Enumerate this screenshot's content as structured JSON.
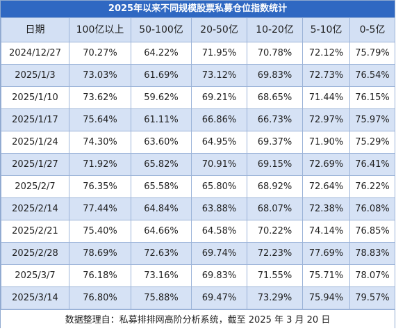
{
  "title": "2025年以来不同规模股票私募仓位指数统计",
  "headers": [
    "日期",
    "100亿以上",
    "50-100亿",
    "20-50亿",
    "10-20亿",
    "5-10亿",
    "0-5亿"
  ],
  "rows": [
    [
      "2024/12/27",
      "70.27%",
      "64.22%",
      "71.95%",
      "70.78%",
      "72.12%",
      "75.79%"
    ],
    [
      "2025/1/3",
      "73.03%",
      "61.69%",
      "73.12%",
      "69.83%",
      "72.73%",
      "76.54%"
    ],
    [
      "2025/1/10",
      "73.62%",
      "59.62%",
      "69.21%",
      "68.65%",
      "71.44%",
      "76.15%"
    ],
    [
      "2025/1/17",
      "75.64%",
      "61.11%",
      "66.86%",
      "66.73%",
      "72.97%",
      "75.97%"
    ],
    [
      "2025/1/24",
      "74.30%",
      "63.60%",
      "64.95%",
      "69.37%",
      "71.90%",
      "75.29%"
    ],
    [
      "2025/1/27",
      "71.92%",
      "65.82%",
      "70.91%",
      "69.15%",
      "72.69%",
      "76.41%"
    ],
    [
      "2025/2/7",
      "76.35%",
      "65.58%",
      "65.80%",
      "68.92%",
      "72.64%",
      "76.22%"
    ],
    [
      "2025/2/14",
      "77.44%",
      "64.84%",
      "63.88%",
      "68.07%",
      "72.38%",
      "76.08%"
    ],
    [
      "2025/2/21",
      "75.40%",
      "64.66%",
      "64.58%",
      "70.22%",
      "74.14%",
      "76.85%"
    ],
    [
      "2025/2/28",
      "78.69%",
      "72.63%",
      "69.74%",
      "72.23%",
      "77.69%",
      "78.83%"
    ],
    [
      "2025/3/7",
      "76.18%",
      "73.16%",
      "69.83%",
      "71.55%",
      "75.71%",
      "78.07%"
    ],
    [
      "2025/3/14",
      "76.80%",
      "75.88%",
      "69.47%",
      "73.29%",
      "75.94%",
      "79.57%"
    ]
  ],
  "footer": "数据整理自：私募排排网高阶分析系统，截至 2025 年 3 月 20 日",
  "colors": {
    "title_bg": "#2f68c2",
    "header_bg": "#d3e0f4",
    "alt_row_bg": "#d6e2f5",
    "border": "#9bb3d8"
  }
}
